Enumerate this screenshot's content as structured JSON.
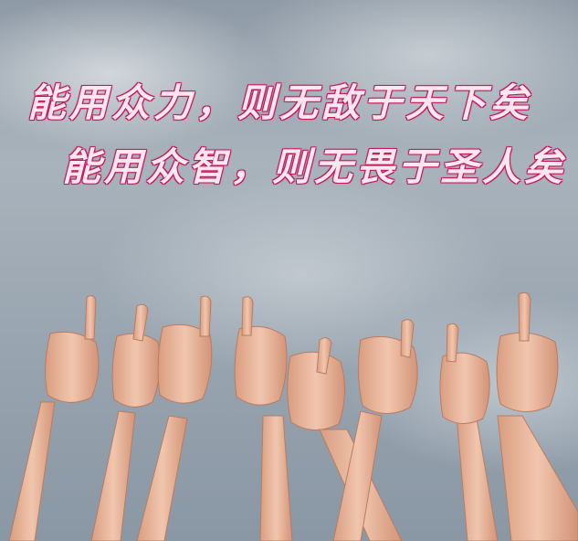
{
  "slogans": [
    "能用众力，则无敌于天下矣",
    "能用众智，则无畏于圣人矣"
  ],
  "colors": {
    "text": "#c2185b",
    "skin": "#e8b59a",
    "sky": "#9aa6b1"
  }
}
